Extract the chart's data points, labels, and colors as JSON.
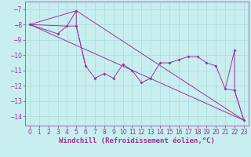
{
  "background_color": "#c8eef0",
  "grid_color": "#b0dde0",
  "line_color": "#993399",
  "marker_color": "#993399",
  "xlabel": "Windchill (Refroidissement éolien,°C)",
  "xlabel_fontsize": 6.5,
  "tick_fontsize": 5.5,
  "xlim": [
    -0.5,
    23.5
  ],
  "ylim": [
    -14.6,
    -6.5
  ],
  "yticks": [
    -14,
    -13,
    -12,
    -11,
    -10,
    -9,
    -8,
    -7
  ],
  "xticks": [
    0,
    1,
    2,
    3,
    4,
    5,
    6,
    7,
    8,
    9,
    10,
    11,
    12,
    13,
    14,
    15,
    16,
    17,
    18,
    19,
    20,
    21,
    22,
    23
  ],
  "triangle_lines": [
    [
      [
        0,
        -8.0
      ],
      [
        5,
        -7.1
      ]
    ],
    [
      [
        0,
        -8.0
      ],
      [
        23,
        -14.25
      ]
    ],
    [
      [
        5,
        -7.1
      ],
      [
        23,
        -14.25
      ]
    ]
  ],
  "main_line_x": [
    0,
    3,
    4,
    5,
    6,
    7,
    8,
    9,
    10,
    11,
    12,
    13,
    14,
    15,
    16,
    17,
    18,
    19,
    20,
    21,
    22,
    23
  ],
  "main_line_y": [
    -8.0,
    -8.6,
    -8.1,
    -8.1,
    -10.7,
    -11.5,
    -11.2,
    -11.5,
    -10.6,
    -11.0,
    -11.8,
    -11.5,
    -10.5,
    -10.5,
    -10.3,
    -10.1,
    -10.1,
    -10.5,
    -10.7,
    -12.2,
    -12.3,
    -14.25
  ],
  "peak_line_x": [
    0,
    4,
    5,
    5,
    6
  ],
  "peak_line_y": [
    -8.0,
    -8.1,
    -7.1,
    -8.1,
    -10.7
  ],
  "spike_line_x": [
    21,
    22,
    22,
    23
  ],
  "spike_line_y": [
    -12.2,
    -9.7,
    -12.3,
    -14.25
  ],
  "all_points_x": [
    0,
    3,
    4,
    5,
    5,
    6,
    7,
    8,
    9,
    10,
    11,
    12,
    13,
    14,
    15,
    16,
    17,
    18,
    19,
    20,
    21,
    22,
    22,
    23
  ],
  "all_points_y": [
    -8.0,
    -8.6,
    -8.1,
    -7.1,
    -8.1,
    -10.7,
    -11.5,
    -11.2,
    -11.5,
    -10.6,
    -11.0,
    -11.8,
    -11.5,
    -10.5,
    -10.5,
    -10.3,
    -10.1,
    -10.1,
    -10.5,
    -10.7,
    -12.2,
    -9.7,
    -12.3,
    -14.25
  ]
}
